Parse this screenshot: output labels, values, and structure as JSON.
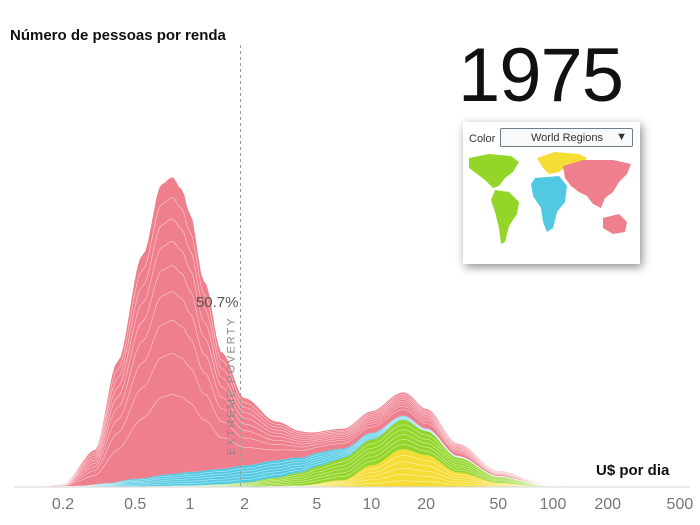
{
  "title": "Número de pessoas por renda",
  "year": "1975",
  "legend": {
    "label": "Color",
    "selected": "World Regions",
    "colors": {
      "asia": "#ef7f8c",
      "americas": "#93d629",
      "africa": "#52c9e3",
      "europe": "#f6dd36"
    }
  },
  "chart_data": {
    "type": "area",
    "stacked": true,
    "x_scale": "log",
    "xlabel": "U$ por dia",
    "ylabel": "Número de pessoas por renda",
    "x_ticks": [
      0.2,
      0.5,
      1,
      2,
      5,
      10,
      20,
      50,
      100,
      200,
      500
    ],
    "x_tick_labels": [
      "0.2",
      "0.5",
      "1",
      "2",
      "5",
      "10",
      "20",
      "50",
      "100",
      "200",
      "500"
    ],
    "xlim": [
      0.13,
      600
    ],
    "poverty_line": {
      "x": 1.9,
      "label": "EXTREME POVERTY",
      "share_below": "50.7%"
    },
    "series": [
      {
        "key": "europe",
        "color": "#f6dd36",
        "values": [
          [
            0.13,
            0
          ],
          [
            1,
            0
          ],
          [
            2,
            0.2
          ],
          [
            4,
            1.5
          ],
          [
            7,
            8
          ],
          [
            10,
            25
          ],
          [
            15,
            44
          ],
          [
            20,
            37
          ],
          [
            30,
            17
          ],
          [
            50,
            5
          ],
          [
            80,
            1
          ],
          [
            150,
            0
          ],
          [
            600,
            0
          ]
        ]
      },
      {
        "key": "americas",
        "color": "#93d629",
        "values": [
          [
            0.13,
            0
          ],
          [
            0.5,
            0.5
          ],
          [
            1,
            1.5
          ],
          [
            1.5,
            3
          ],
          [
            2,
            5
          ],
          [
            3,
            10
          ],
          [
            4,
            15
          ],
          [
            5,
            20
          ],
          [
            8,
            27
          ],
          [
            10,
            30
          ],
          [
            15,
            34
          ],
          [
            20,
            28
          ],
          [
            30,
            17
          ],
          [
            50,
            7
          ],
          [
            100,
            1
          ],
          [
            600,
            0
          ]
        ]
      },
      {
        "key": "africa",
        "color": "#52c9e3",
        "values": [
          [
            0.13,
            0
          ],
          [
            0.25,
            1
          ],
          [
            0.35,
            4
          ],
          [
            0.5,
            9
          ],
          [
            0.8,
            14
          ],
          [
            1,
            16
          ],
          [
            1.5,
            18
          ],
          [
            2,
            20
          ],
          [
            3,
            20
          ],
          [
            5,
            16
          ],
          [
            8,
            10
          ],
          [
            10,
            8
          ],
          [
            15,
            5
          ],
          [
            20,
            3
          ],
          [
            50,
            0.5
          ],
          [
            600,
            0
          ]
        ]
      },
      {
        "key": "asia",
        "color": "#ef7f8c",
        "values": [
          [
            0.13,
            0
          ],
          [
            0.2,
            3
          ],
          [
            0.3,
            40
          ],
          [
            0.4,
            140
          ],
          [
            0.55,
            260
          ],
          [
            0.7,
            338
          ],
          [
            0.8,
            345
          ],
          [
            0.9,
            330
          ],
          [
            1,
            300
          ],
          [
            1.2,
            220
          ],
          [
            1.5,
            135
          ],
          [
            2,
            78
          ],
          [
            3,
            45
          ],
          [
            4,
            31
          ],
          [
            5,
            24
          ],
          [
            7,
            23
          ],
          [
            10,
            25
          ],
          [
            13,
            27
          ],
          [
            16,
            27
          ],
          [
            20,
            23
          ],
          [
            30,
            14
          ],
          [
            50,
            6
          ],
          [
            100,
            1
          ],
          [
            600,
            0
          ]
        ]
      }
    ],
    "grid": false
  }
}
